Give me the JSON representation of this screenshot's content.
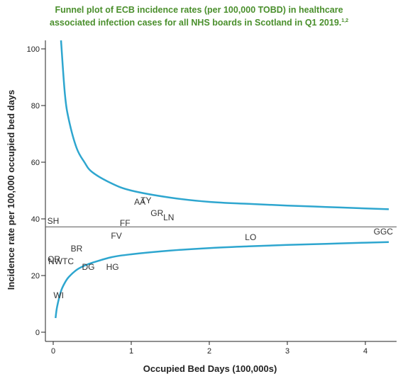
{
  "title": {
    "line1": "Funnel plot of ECB incidence rates (per 100,000 TOBD) in healthcare",
    "line2": "associated infection cases for all NHS boards in Scotland in Q1 2019.",
    "superscript": "1,2"
  },
  "colors": {
    "title": "#4a8f2c",
    "funnel": "#2ea6cf",
    "axis": "#222222",
    "mean_line": "#555555"
  },
  "chart_data": {
    "type": "scatter",
    "title": "Funnel plot of ECB incidence rates (per 100,000 TOBD) in healthcare associated infection cases for all NHS boards in Scotland in Q1 2019.1,2",
    "xlabel": "Occupied Bed Days (100,000s)",
    "ylabel": "Incidence rate per 100,000 occupied bed days",
    "xlim": [
      -0.1,
      4.3
    ],
    "ylim": [
      -3,
      103
    ],
    "xticks": [
      0,
      1,
      2,
      3,
      4
    ],
    "yticks": [
      0,
      20,
      40,
      60,
      80,
      100
    ],
    "grid": false,
    "legend": "none",
    "mean_rate": 37.2,
    "control_limits": {
      "description": "funnel control limits",
      "upper": {
        "x": [
          0.1,
          0.15,
          0.2,
          0.3,
          0.4,
          0.5,
          0.75,
          1.0,
          1.5,
          2.0,
          2.5,
          3.0,
          3.5,
          4.0,
          4.3
        ],
        "y": [
          103,
          84,
          75,
          65,
          60,
          56.5,
          52.5,
          50,
          47.5,
          46,
          45.3,
          44.7,
          44.2,
          43.7,
          43.4
        ]
      },
      "lower": {
        "x": [
          0.03,
          0.05,
          0.1,
          0.15,
          0.2,
          0.3,
          0.4,
          0.5,
          0.75,
          1.0,
          1.5,
          2.0,
          2.5,
          3.0,
          3.5,
          4.0,
          4.3
        ],
        "y": [
          5,
          9,
          14.5,
          17.5,
          19.5,
          22,
          23.5,
          24.5,
          26.5,
          27.5,
          28.8,
          29.7,
          30.3,
          30.8,
          31.2,
          31.6,
          31.8
        ]
      }
    },
    "points": [
      {
        "label": "AA",
        "x": 1.11,
        "y": 46.0
      },
      {
        "label": "TY",
        "x": 1.19,
        "y": 46.5
      },
      {
        "label": "GR",
        "x": 1.33,
        "y": 42.0
      },
      {
        "label": "LN",
        "x": 1.48,
        "y": 40.5
      },
      {
        "label": "FF",
        "x": 0.92,
        "y": 38.5
      },
      {
        "label": "SH",
        "x": 0.0,
        "y": 39.2
      },
      {
        "label": "FV",
        "x": 0.81,
        "y": 34.0
      },
      {
        "label": "LO",
        "x": 2.53,
        "y": 33.5
      },
      {
        "label": "GGC",
        "x": 4.23,
        "y": 35.5
      },
      {
        "label": "BR",
        "x": 0.3,
        "y": 29.5
      },
      {
        "label": "OR",
        "x": 0.01,
        "y": 25.7
      },
      {
        "label": "NWTC",
        "x": 0.1,
        "y": 25.0
      },
      {
        "label": "DG",
        "x": 0.45,
        "y": 23.0
      },
      {
        "label": "HG",
        "x": 0.76,
        "y": 23.0
      },
      {
        "label": "WI",
        "x": 0.07,
        "y": 13.0
      }
    ]
  }
}
